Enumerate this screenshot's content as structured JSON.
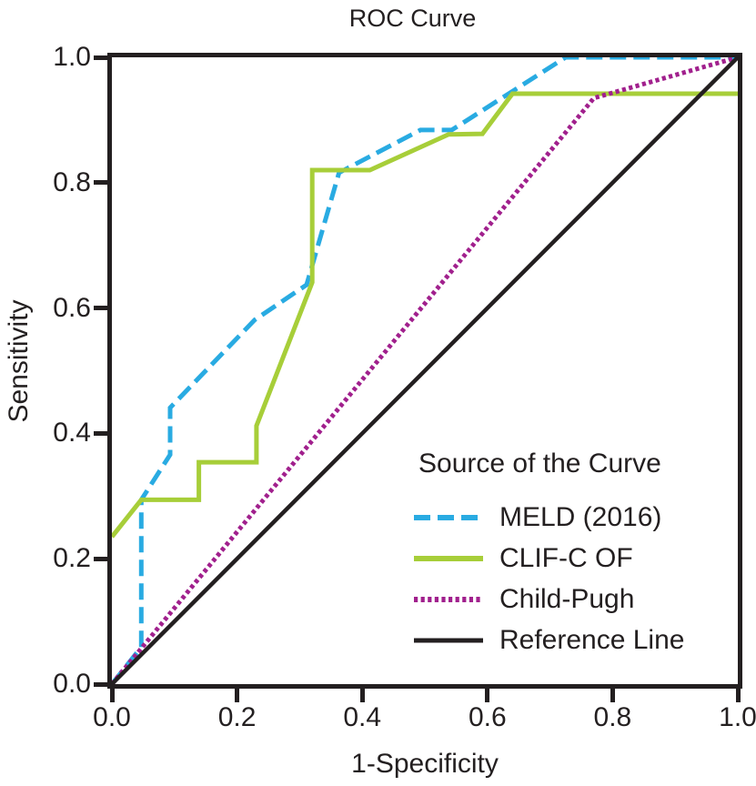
{
  "chart_data": {
    "type": "line",
    "title": "ROC Curve",
    "xlabel": "1-Specificity",
    "ylabel": "Sensitivity",
    "xlim": [
      0.0,
      1.0
    ],
    "ylim": [
      0.0,
      1.0
    ],
    "x_tick_labels": [
      "0.0",
      "0.2",
      "0.4",
      "0.6",
      "0.8",
      "1.0"
    ],
    "y_tick_labels": [
      "0.0",
      "0.2",
      "0.4",
      "0.6",
      "0.8",
      "1.0"
    ],
    "grid": false,
    "frame": true,
    "legend": {
      "title": "Source of the Curve",
      "position": "inside lower right"
    },
    "series": [
      {
        "name": "MELD (2016)",
        "color": "#29ABE2",
        "style": "dashed",
        "points": [
          [
            0.0,
            0.0
          ],
          [
            0.047,
            0.059
          ],
          [
            0.047,
            0.294
          ],
          [
            0.093,
            0.366
          ],
          [
            0.093,
            0.441
          ],
          [
            0.228,
            0.581
          ],
          [
            0.311,
            0.637
          ],
          [
            0.363,
            0.816
          ],
          [
            0.493,
            0.884
          ],
          [
            0.543,
            0.884
          ],
          [
            0.725,
            1.0
          ],
          [
            1.0,
            1.0
          ]
        ]
      },
      {
        "name": "CLIF-C OF",
        "color": "#A7CE39",
        "style": "solid",
        "points": [
          [
            0.0,
            0.235
          ],
          [
            0.047,
            0.294
          ],
          [
            0.139,
            0.294
          ],
          [
            0.139,
            0.354
          ],
          [
            0.231,
            0.354
          ],
          [
            0.231,
            0.412
          ],
          [
            0.32,
            0.641
          ],
          [
            0.32,
            0.82
          ],
          [
            0.412,
            0.82
          ],
          [
            0.538,
            0.877
          ],
          [
            0.592,
            0.878
          ],
          [
            0.64,
            0.942
          ],
          [
            1.0,
            0.942
          ]
        ]
      },
      {
        "name": "Child-Pugh",
        "color": "#A1208D",
        "style": "dotted",
        "points": [
          [
            0.0,
            0.0
          ],
          [
            0.77,
            0.935
          ],
          [
            1.0,
            1.0
          ]
        ]
      },
      {
        "name": "Reference Line",
        "color": "#231F20",
        "style": "solid",
        "points": [
          [
            0.0,
            0.0
          ],
          [
            1.0,
            1.0
          ]
        ]
      }
    ],
    "colors": {
      "axis": "#231F20",
      "text": "#231F20",
      "background": "#FFFFFF"
    }
  }
}
